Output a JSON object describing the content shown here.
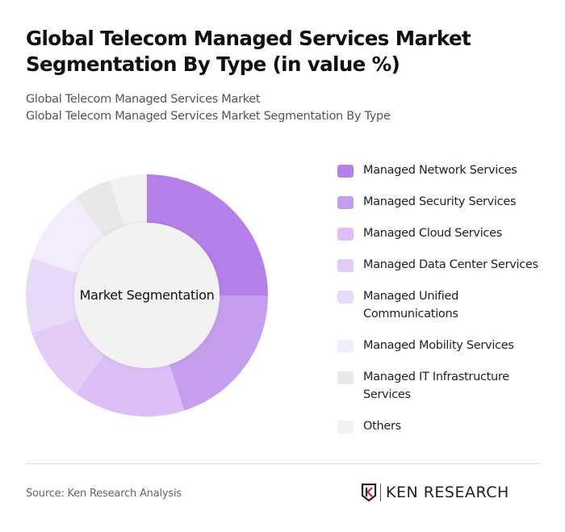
{
  "header": {
    "title": "Global Telecom Managed Services Market Segmentation By Type (in value %)",
    "subtitle_line1": "Global Telecom Managed Services Market",
    "subtitle_line2": "Global Telecom Managed Services Market Segmentation By Type"
  },
  "chart_data": {
    "type": "pie",
    "variant": "donut",
    "title": "Global Telecom Managed Services Market Segmentation By Type (in value %)",
    "center_label": "Market Segmentation",
    "categories": [
      "Managed Network Services",
      "Managed Security Services",
      "Managed Cloud Services",
      "Managed Data Center Services",
      "Managed Unified Communications",
      "Managed Mobility Services",
      "Managed IT Infrastructure Services",
      "Others"
    ],
    "values": [
      25,
      20,
      15,
      10,
      10,
      10,
      5,
      5
    ],
    "colors": [
      "#B580E9",
      "#C69EEE",
      "#DBBFF6",
      "#E3CDF8",
      "#E9DAFA",
      "#F3ECFC",
      "#E8E8E8",
      "#F2F2F2"
    ],
    "legend_position": "right"
  },
  "legend": {
    "items": [
      {
        "label": "Managed Network Services",
        "color": "#B580E9"
      },
      {
        "label": "Managed Security Services",
        "color": "#C69EEE"
      },
      {
        "label": "Managed Cloud Services",
        "color": "#DBBFF6"
      },
      {
        "label": "Managed Data Center Services",
        "color": "#E3CDF8"
      },
      {
        "label": "Managed Unified Communications",
        "color": "#E9DAFA"
      },
      {
        "label": "Managed Mobility Services",
        "color": "#F3ECFC"
      },
      {
        "label": "Managed IT Infrastructure Services",
        "color": "#E8E8E8"
      },
      {
        "label": "Others",
        "color": "#F2F2F2"
      }
    ]
  },
  "footer": {
    "source": "Source: Ken Research Analysis",
    "logo_text": "KEN RESEARCH"
  }
}
